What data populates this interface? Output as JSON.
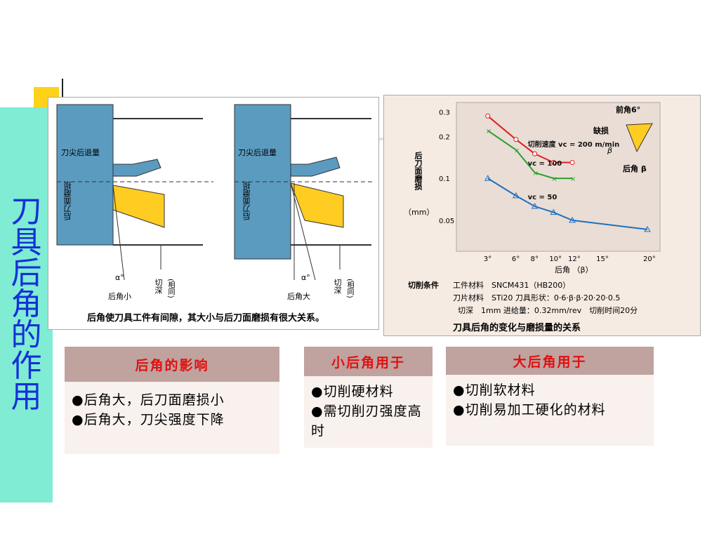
{
  "slide_title": "刀具后角的作用",
  "left_figure": {
    "labels": {
      "tip_retreat": "刀尖后退量",
      "flank_wear": "后刀面磨损",
      "alpha": "α°",
      "depth": "切深",
      "depth_same": "(相同)",
      "small_angle": "后角小",
      "large_angle": "后角大"
    },
    "caption": "后角使刀具工件有间隙，其大小与后刀面磨损有很大关系。"
  },
  "right_chart": {
    "ylabel": "后刀面磨损",
    "yunit": "（mm）",
    "xlabel": "后角 （β）",
    "rake_label": "前角6°",
    "chip_label": "缺损",
    "beta_label": "β",
    "clearance_label": "后角 β",
    "conditions_title": "切削条件",
    "cond1": "工件材料　SNCM431（HB200）",
    "cond2": "刀片材料　STi20  刀具形状：0·6·β·β·20·20·0.5",
    "cond3": "切深　1mm  进给量：0.32mm/rev　切削时间20分",
    "caption": "刀具后角的变化与磨损量的关系"
  },
  "chart_data": {
    "type": "line",
    "xlabel": "后角 （β）",
    "ylabel": "后刀面磨损",
    "x_ticks": [
      "3°",
      "6°",
      "8°",
      "10°",
      "12°",
      "15°",
      "20°"
    ],
    "y_ticks": [
      "0.3",
      "0.2",
      "0.1",
      "0.05"
    ],
    "series": [
      {
        "name": "切削速度 vc = 200 m/min",
        "color": "#e02020",
        "x": [
          3,
          6,
          8,
          10,
          12
        ],
        "y": [
          0.28,
          0.19,
          0.15,
          0.13,
          0.13
        ]
      },
      {
        "name": "vc = 100",
        "color": "#2ca02c",
        "x": [
          3,
          6,
          8,
          10,
          12
        ],
        "y": [
          0.22,
          0.16,
          0.11,
          0.1,
          0.1
        ]
      },
      {
        "name": "vc = 50",
        "color": "#1f6fc0",
        "x": [
          3,
          6,
          8,
          10,
          12,
          20
        ],
        "y": [
          0.1,
          0.075,
          0.063,
          0.057,
          0.05,
          0.043
        ]
      }
    ]
  },
  "cards": [
    {
      "title": "后角的影响",
      "items": [
        "●后角大，后刀面磨损小",
        "●后角大，刀尖强度下降"
      ]
    },
    {
      "title": "小后角用于",
      "items": [
        "●切削硬材料",
        "●需切削刃强度高时"
      ]
    },
    {
      "title": "大后角用于",
      "items": [
        "●切削软材料",
        "●切削易加工硬化的材料"
      ]
    }
  ]
}
